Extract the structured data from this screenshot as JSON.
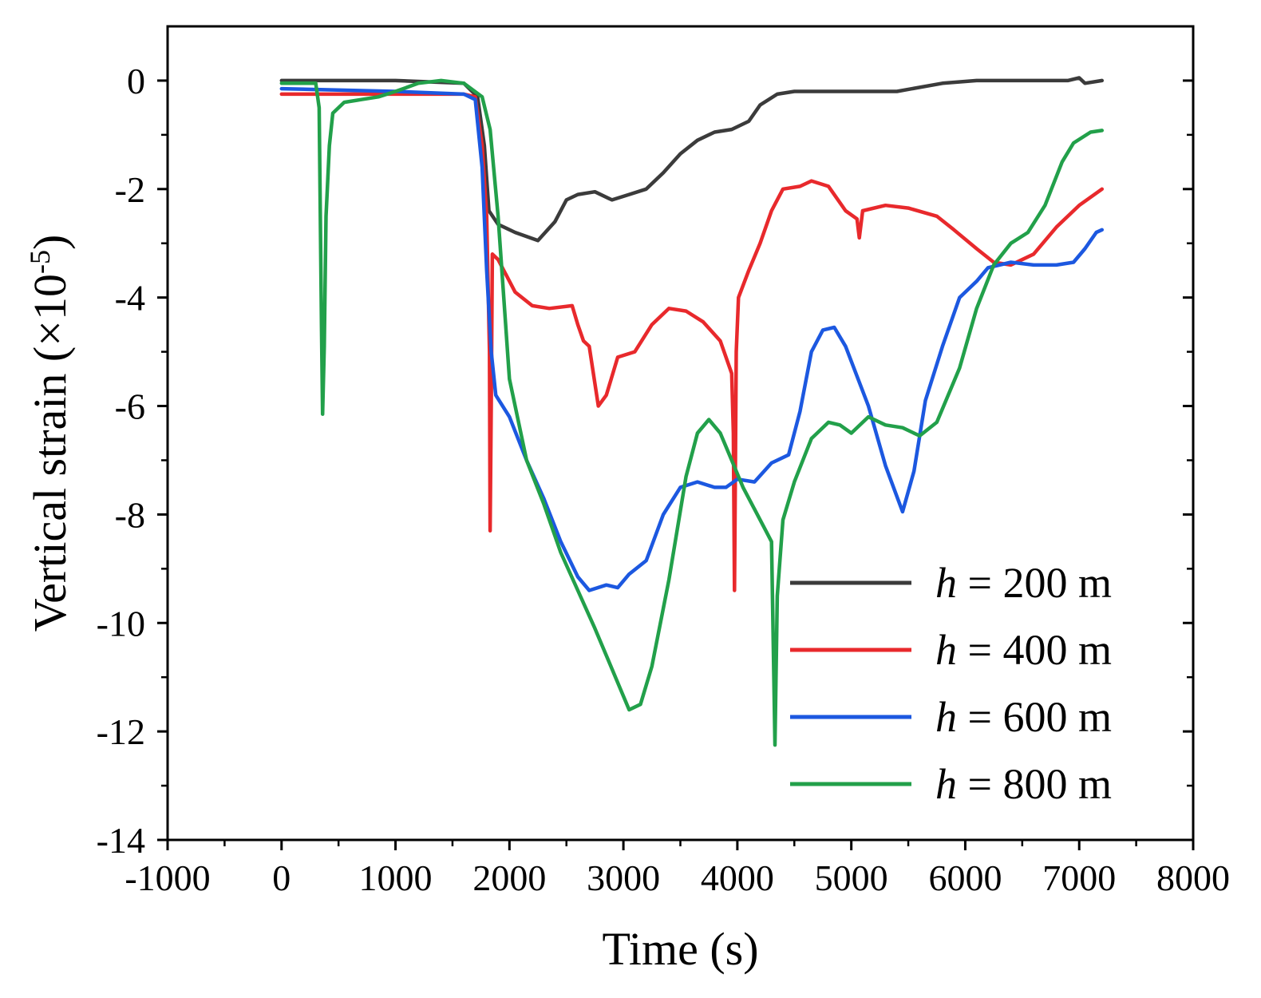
{
  "chart_data": {
    "type": "line",
    "title": "",
    "xlabel": "Time (s)",
    "ylabel_main": "Vertical strain (×10",
    "ylabel_exp": "-5",
    "ylabel_close": ")",
    "xlim": [
      -1000,
      8000
    ],
    "ylim": [
      -14,
      1
    ],
    "xticks": [
      -1000,
      0,
      1000,
      2000,
      3000,
      4000,
      5000,
      6000,
      7000,
      8000
    ],
    "xtick_labels": [
      "-1000",
      "0",
      "1000",
      "2000",
      "3000",
      "4000",
      "5000",
      "6000",
      "7000",
      "8000"
    ],
    "yticks": [
      0,
      -2,
      -4,
      -6,
      -8,
      -10,
      -12,
      -14
    ],
    "ytick_labels": [
      "0",
      "-2",
      "-4",
      "-6",
      "-8",
      "-10",
      "-12",
      "-14"
    ],
    "legend_position": "bottom-right",
    "series": [
      {
        "name": "h = 200 m",
        "var": "h",
        "eq": " = 200 m",
        "color": "#3b3b3b",
        "points": [
          [
            0,
            0
          ],
          [
            1000,
            0
          ],
          [
            1600,
            -0.05
          ],
          [
            1720,
            -0.3
          ],
          [
            1780,
            -1.2
          ],
          [
            1820,
            -2.4
          ],
          [
            1900,
            -2.65
          ],
          [
            2050,
            -2.8
          ],
          [
            2250,
            -2.95
          ],
          [
            2400,
            -2.6
          ],
          [
            2500,
            -2.2
          ],
          [
            2600,
            -2.1
          ],
          [
            2750,
            -2.05
          ],
          [
            2900,
            -2.2
          ],
          [
            3050,
            -2.1
          ],
          [
            3200,
            -2.0
          ],
          [
            3350,
            -1.7
          ],
          [
            3500,
            -1.35
          ],
          [
            3650,
            -1.1
          ],
          [
            3800,
            -0.95
          ],
          [
            3950,
            -0.9
          ],
          [
            4100,
            -0.75
          ],
          [
            4200,
            -0.45
          ],
          [
            4350,
            -0.25
          ],
          [
            4500,
            -0.2
          ],
          [
            4800,
            -0.2
          ],
          [
            5400,
            -0.2
          ],
          [
            5800,
            -0.05
          ],
          [
            6100,
            0
          ],
          [
            6500,
            0
          ],
          [
            6900,
            0
          ],
          [
            7000,
            0.05
          ],
          [
            7050,
            -0.05
          ],
          [
            7200,
            0
          ]
        ]
      },
      {
        "name": "h = 400 m",
        "var": "h",
        "eq": " = 400 m",
        "color": "#e8292c",
        "points": [
          [
            0,
            -0.25
          ],
          [
            1000,
            -0.25
          ],
          [
            1600,
            -0.25
          ],
          [
            1700,
            -0.3
          ],
          [
            1760,
            -1.2
          ],
          [
            1800,
            -2.5
          ],
          [
            1825,
            -5.0
          ],
          [
            1830,
            -8.3
          ],
          [
            1840,
            -6.0
          ],
          [
            1850,
            -3.2
          ],
          [
            1900,
            -3.3
          ],
          [
            2050,
            -3.9
          ],
          [
            2200,
            -4.15
          ],
          [
            2350,
            -4.2
          ],
          [
            2550,
            -4.15
          ],
          [
            2600,
            -4.5
          ],
          [
            2650,
            -4.8
          ],
          [
            2700,
            -4.9
          ],
          [
            2780,
            -6.0
          ],
          [
            2850,
            -5.8
          ],
          [
            2950,
            -5.1
          ],
          [
            3100,
            -5.0
          ],
          [
            3250,
            -4.5
          ],
          [
            3400,
            -4.2
          ],
          [
            3550,
            -4.25
          ],
          [
            3700,
            -4.45
          ],
          [
            3850,
            -4.8
          ],
          [
            3950,
            -5.4
          ],
          [
            3965,
            -6.5
          ],
          [
            3975,
            -9.4
          ],
          [
            3990,
            -5.0
          ],
          [
            4010,
            -4.0
          ],
          [
            4100,
            -3.5
          ],
          [
            4200,
            -3.0
          ],
          [
            4300,
            -2.4
          ],
          [
            4400,
            -2.0
          ],
          [
            4550,
            -1.95
          ],
          [
            4650,
            -1.85
          ],
          [
            4800,
            -1.95
          ],
          [
            4950,
            -2.4
          ],
          [
            5050,
            -2.55
          ],
          [
            5070,
            -2.9
          ],
          [
            5100,
            -2.4
          ],
          [
            5300,
            -2.3
          ],
          [
            5500,
            -2.35
          ],
          [
            5750,
            -2.5
          ],
          [
            5900,
            -2.75
          ],
          [
            6100,
            -3.1
          ],
          [
            6250,
            -3.35
          ],
          [
            6400,
            -3.4
          ],
          [
            6600,
            -3.2
          ],
          [
            6800,
            -2.7
          ],
          [
            7000,
            -2.3
          ],
          [
            7200,
            -2.0
          ]
        ]
      },
      {
        "name": "h = 600 m",
        "var": "h",
        "eq": " = 600 m",
        "color": "#1c58e0",
        "points": [
          [
            0,
            -0.15
          ],
          [
            1000,
            -0.2
          ],
          [
            1600,
            -0.25
          ],
          [
            1700,
            -0.35
          ],
          [
            1760,
            -1.6
          ],
          [
            1800,
            -3.5
          ],
          [
            1840,
            -5.0
          ],
          [
            1880,
            -5.8
          ],
          [
            2000,
            -6.2
          ],
          [
            2150,
            -7.0
          ],
          [
            2300,
            -7.7
          ],
          [
            2450,
            -8.5
          ],
          [
            2600,
            -9.15
          ],
          [
            2700,
            -9.4
          ],
          [
            2850,
            -9.3
          ],
          [
            2950,
            -9.35
          ],
          [
            3050,
            -9.1
          ],
          [
            3200,
            -8.85
          ],
          [
            3350,
            -8.0
          ],
          [
            3500,
            -7.5
          ],
          [
            3650,
            -7.4
          ],
          [
            3800,
            -7.5
          ],
          [
            3900,
            -7.5
          ],
          [
            4000,
            -7.35
          ],
          [
            4150,
            -7.4
          ],
          [
            4300,
            -7.05
          ],
          [
            4450,
            -6.9
          ],
          [
            4550,
            -6.1
          ],
          [
            4650,
            -5.0
          ],
          [
            4750,
            -4.6
          ],
          [
            4850,
            -4.55
          ],
          [
            4950,
            -4.9
          ],
          [
            5150,
            -6.0
          ],
          [
            5300,
            -7.1
          ],
          [
            5450,
            -7.95
          ],
          [
            5550,
            -7.2
          ],
          [
            5650,
            -5.9
          ],
          [
            5800,
            -4.9
          ],
          [
            5950,
            -4.0
          ],
          [
            6100,
            -3.7
          ],
          [
            6200,
            -3.45
          ],
          [
            6400,
            -3.35
          ],
          [
            6600,
            -3.4
          ],
          [
            6800,
            -3.4
          ],
          [
            6950,
            -3.35
          ],
          [
            7050,
            -3.1
          ],
          [
            7150,
            -2.8
          ],
          [
            7200,
            -2.75
          ]
        ]
      },
      {
        "name": "h = 800 m",
        "var": "h",
        "eq": " = 800 m",
        "color": "#22a04a",
        "points": [
          [
            0,
            -0.05
          ],
          [
            300,
            -0.05
          ],
          [
            330,
            -0.5
          ],
          [
            350,
            -4.5
          ],
          [
            360,
            -6.15
          ],
          [
            375,
            -4.9
          ],
          [
            390,
            -2.5
          ],
          [
            420,
            -1.2
          ],
          [
            450,
            -0.6
          ],
          [
            550,
            -0.4
          ],
          [
            700,
            -0.35
          ],
          [
            850,
            -0.3
          ],
          [
            1000,
            -0.2
          ],
          [
            1200,
            -0.05
          ],
          [
            1400,
            0
          ],
          [
            1600,
            -0.05
          ],
          [
            1760,
            -0.3
          ],
          [
            1830,
            -0.9
          ],
          [
            1900,
            -2.5
          ],
          [
            2000,
            -5.5
          ],
          [
            2150,
            -7.0
          ],
          [
            2300,
            -7.8
          ],
          [
            2450,
            -8.7
          ],
          [
            2600,
            -9.4
          ],
          [
            2750,
            -10.1
          ],
          [
            2850,
            -10.6
          ],
          [
            2950,
            -11.1
          ],
          [
            3050,
            -11.6
          ],
          [
            3150,
            -11.5
          ],
          [
            3250,
            -10.8
          ],
          [
            3400,
            -9.2
          ],
          [
            3550,
            -7.3
          ],
          [
            3650,
            -6.5
          ],
          [
            3750,
            -6.25
          ],
          [
            3850,
            -6.5
          ],
          [
            3950,
            -7.0
          ],
          [
            4050,
            -7.5
          ],
          [
            4150,
            -7.9
          ],
          [
            4250,
            -8.3
          ],
          [
            4300,
            -8.5
          ],
          [
            4320,
            -11.0
          ],
          [
            4330,
            -12.25
          ],
          [
            4350,
            -9.5
          ],
          [
            4400,
            -8.1
          ],
          [
            4500,
            -7.4
          ],
          [
            4650,
            -6.6
          ],
          [
            4800,
            -6.3
          ],
          [
            4900,
            -6.35
          ],
          [
            5000,
            -6.5
          ],
          [
            5150,
            -6.2
          ],
          [
            5300,
            -6.35
          ],
          [
            5450,
            -6.4
          ],
          [
            5600,
            -6.55
          ],
          [
            5750,
            -6.3
          ],
          [
            5950,
            -5.3
          ],
          [
            6100,
            -4.2
          ],
          [
            6250,
            -3.4
          ],
          [
            6400,
            -3.0
          ],
          [
            6550,
            -2.8
          ],
          [
            6700,
            -2.3
          ],
          [
            6850,
            -1.5
          ],
          [
            6950,
            -1.15
          ],
          [
            7100,
            -0.95
          ],
          [
            7200,
            -0.92
          ]
        ]
      }
    ]
  }
}
